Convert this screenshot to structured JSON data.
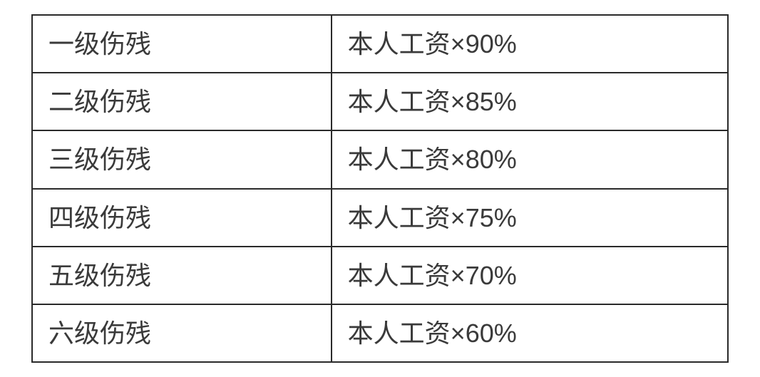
{
  "table": {
    "type": "table",
    "columns": [
      "level",
      "formula"
    ],
    "column_widths": [
      "43%",
      "57%"
    ],
    "border_color": "#2a2a2a",
    "border_width": 2,
    "text_color": "#3a3a3a",
    "background_color": "#ffffff",
    "font_size": 36,
    "cell_padding_v": 18,
    "cell_padding_h": 22,
    "rows": [
      {
        "level": "一级伤残",
        "formula": "本人工资×90%"
      },
      {
        "level": "二级伤残",
        "formula": "本人工资×85%"
      },
      {
        "level": "三级伤残",
        "formula": "本人工资×80%"
      },
      {
        "level": "四级伤残",
        "formula": "本人工资×75%"
      },
      {
        "level": "五级伤残",
        "formula": "本人工资×70%"
      },
      {
        "level": "六级伤残",
        "formula": "本人工资×60%"
      }
    ]
  }
}
